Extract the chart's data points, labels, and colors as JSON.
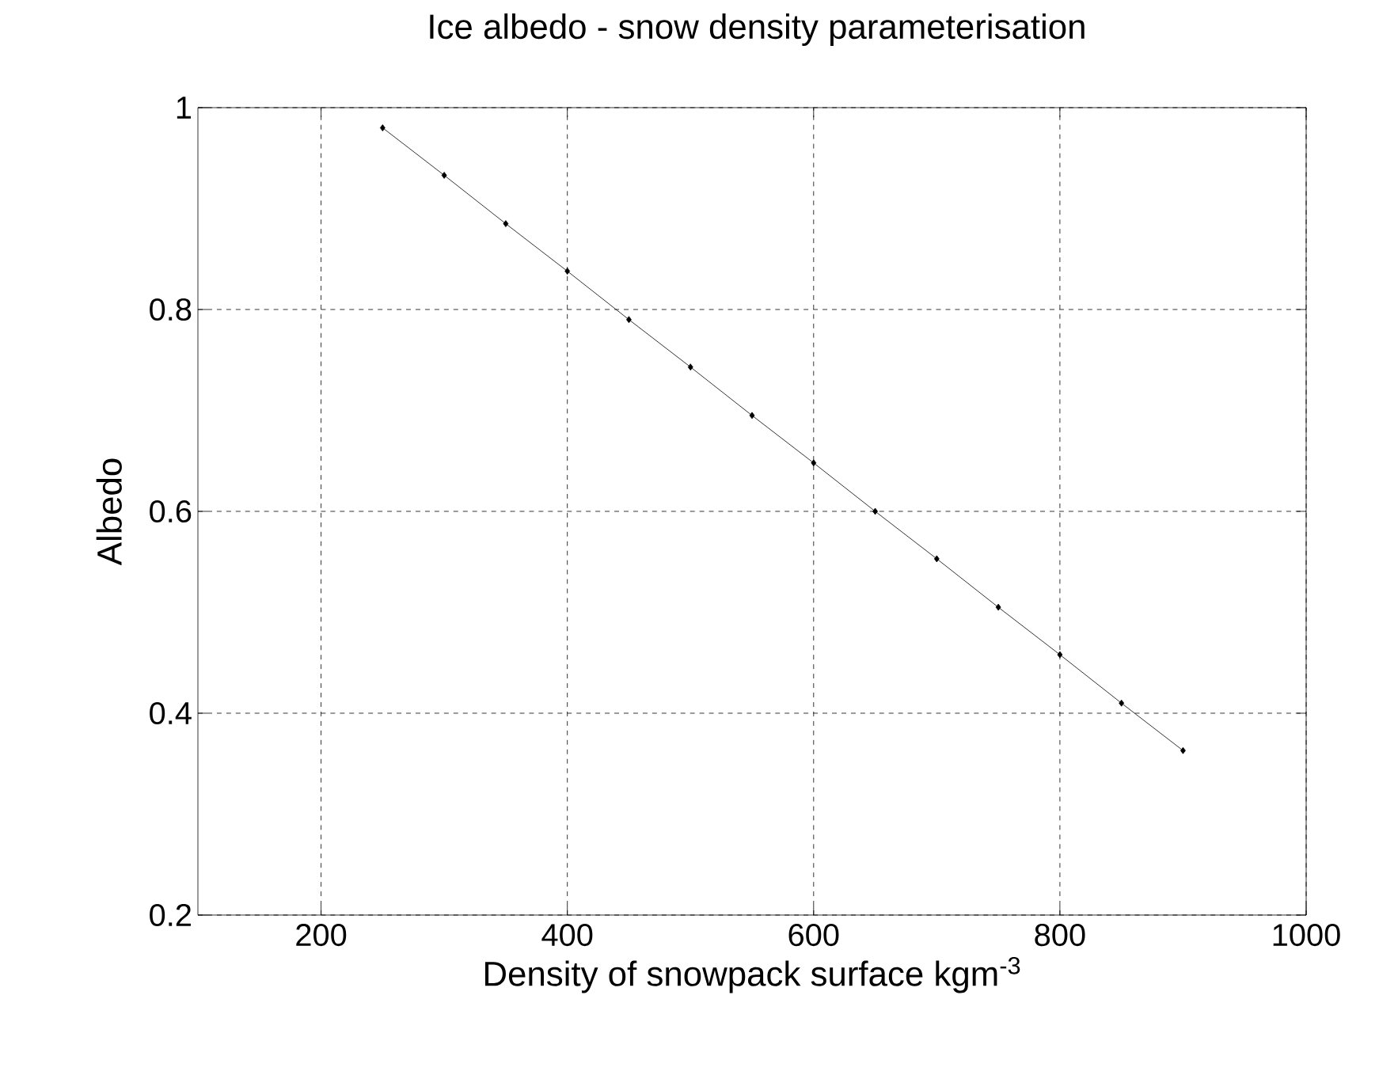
{
  "chart_data": {
    "type": "line",
    "title": "Ice albedo - snow density parameterisation",
    "xlabel": "Density of snowpack surface kgm$^{-3}$",
    "ylabel": "Albedo",
    "x": [
      250,
      300,
      350,
      400,
      450,
      500,
      550,
      600,
      650,
      700,
      750,
      800,
      850,
      900
    ],
    "series": [
      {
        "color": "#000000",
        "values": [
          0.98,
          0.933,
          0.885,
          0.838,
          0.79,
          0.743,
          0.695,
          0.648,
          0.6,
          0.553,
          0.505,
          0.458,
          0.41,
          0.363
        ]
      }
    ],
    "xlim": [
      100,
      1000
    ],
    "ylim": [
      0.2,
      1
    ],
    "xticks": [
      200,
      400,
      600,
      800,
      1000
    ],
    "yticks": [
      0.2,
      0.4,
      0.6,
      0.8,
      1
    ],
    "grid": true,
    "marker": "diamond",
    "line_style": "solid"
  }
}
